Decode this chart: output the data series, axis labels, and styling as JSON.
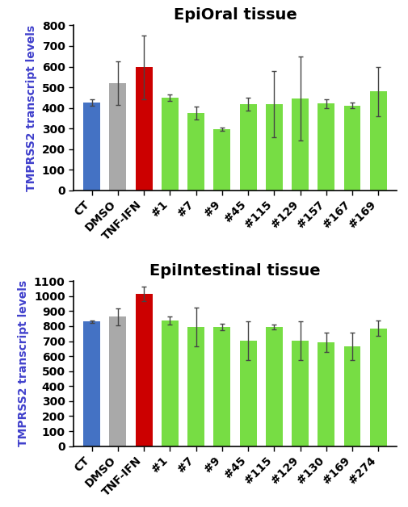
{
  "top": {
    "title": "EpiOral tissue",
    "ylabel": "TMPRSS2 transcript levels",
    "ylabel_color": "#4040CC",
    "categories": [
      "CT",
      "DMSO",
      "TNF-IFN",
      "#1",
      "#7",
      "#9",
      "#45",
      "#115",
      "#129",
      "#157",
      "#167",
      "#169"
    ],
    "values": [
      425,
      520,
      597,
      450,
      375,
      297,
      418,
      418,
      445,
      420,
      412,
      480
    ],
    "errors": [
      15,
      105,
      155,
      15,
      30,
      8,
      30,
      160,
      205,
      20,
      15,
      120
    ],
    "colors": [
      "#4472C4",
      "#A9A9A9",
      "#CC0000",
      "#77DD44",
      "#77DD44",
      "#77DD44",
      "#77DD44",
      "#77DD44",
      "#77DD44",
      "#77DD44",
      "#77DD44",
      "#77DD44"
    ],
    "ylim": [
      0,
      800
    ],
    "yticks": [
      0,
      100,
      200,
      300,
      400,
      500,
      600,
      700,
      800
    ]
  },
  "bottom": {
    "title": "EpiIntestinal tissue",
    "ylabel": "TMPRSS2 transcript levels",
    "ylabel_color": "#4040CC",
    "categories": [
      "CT",
      "DMSO",
      "TNF-IFN",
      "#1",
      "#7",
      "#9",
      "#45",
      "#115",
      "#129",
      "#130",
      "#169",
      "#274"
    ],
    "values": [
      830,
      862,
      1015,
      838,
      795,
      795,
      703,
      793,
      703,
      690,
      665,
      785
    ],
    "errors": [
      10,
      55,
      48,
      25,
      130,
      20,
      130,
      15,
      130,
      65,
      90,
      50
    ],
    "colors": [
      "#4472C4",
      "#A9A9A9",
      "#CC0000",
      "#77DD44",
      "#77DD44",
      "#77DD44",
      "#77DD44",
      "#77DD44",
      "#77DD44",
      "#77DD44",
      "#77DD44",
      "#77DD44"
    ],
    "ylim": [
      0,
      1100
    ],
    "yticks": [
      0,
      100,
      200,
      300,
      400,
      500,
      600,
      700,
      800,
      900,
      1000,
      1100
    ]
  },
  "title_fontsize": 14,
  "tick_fontsize": 10,
  "ylabel_fontsize": 10
}
